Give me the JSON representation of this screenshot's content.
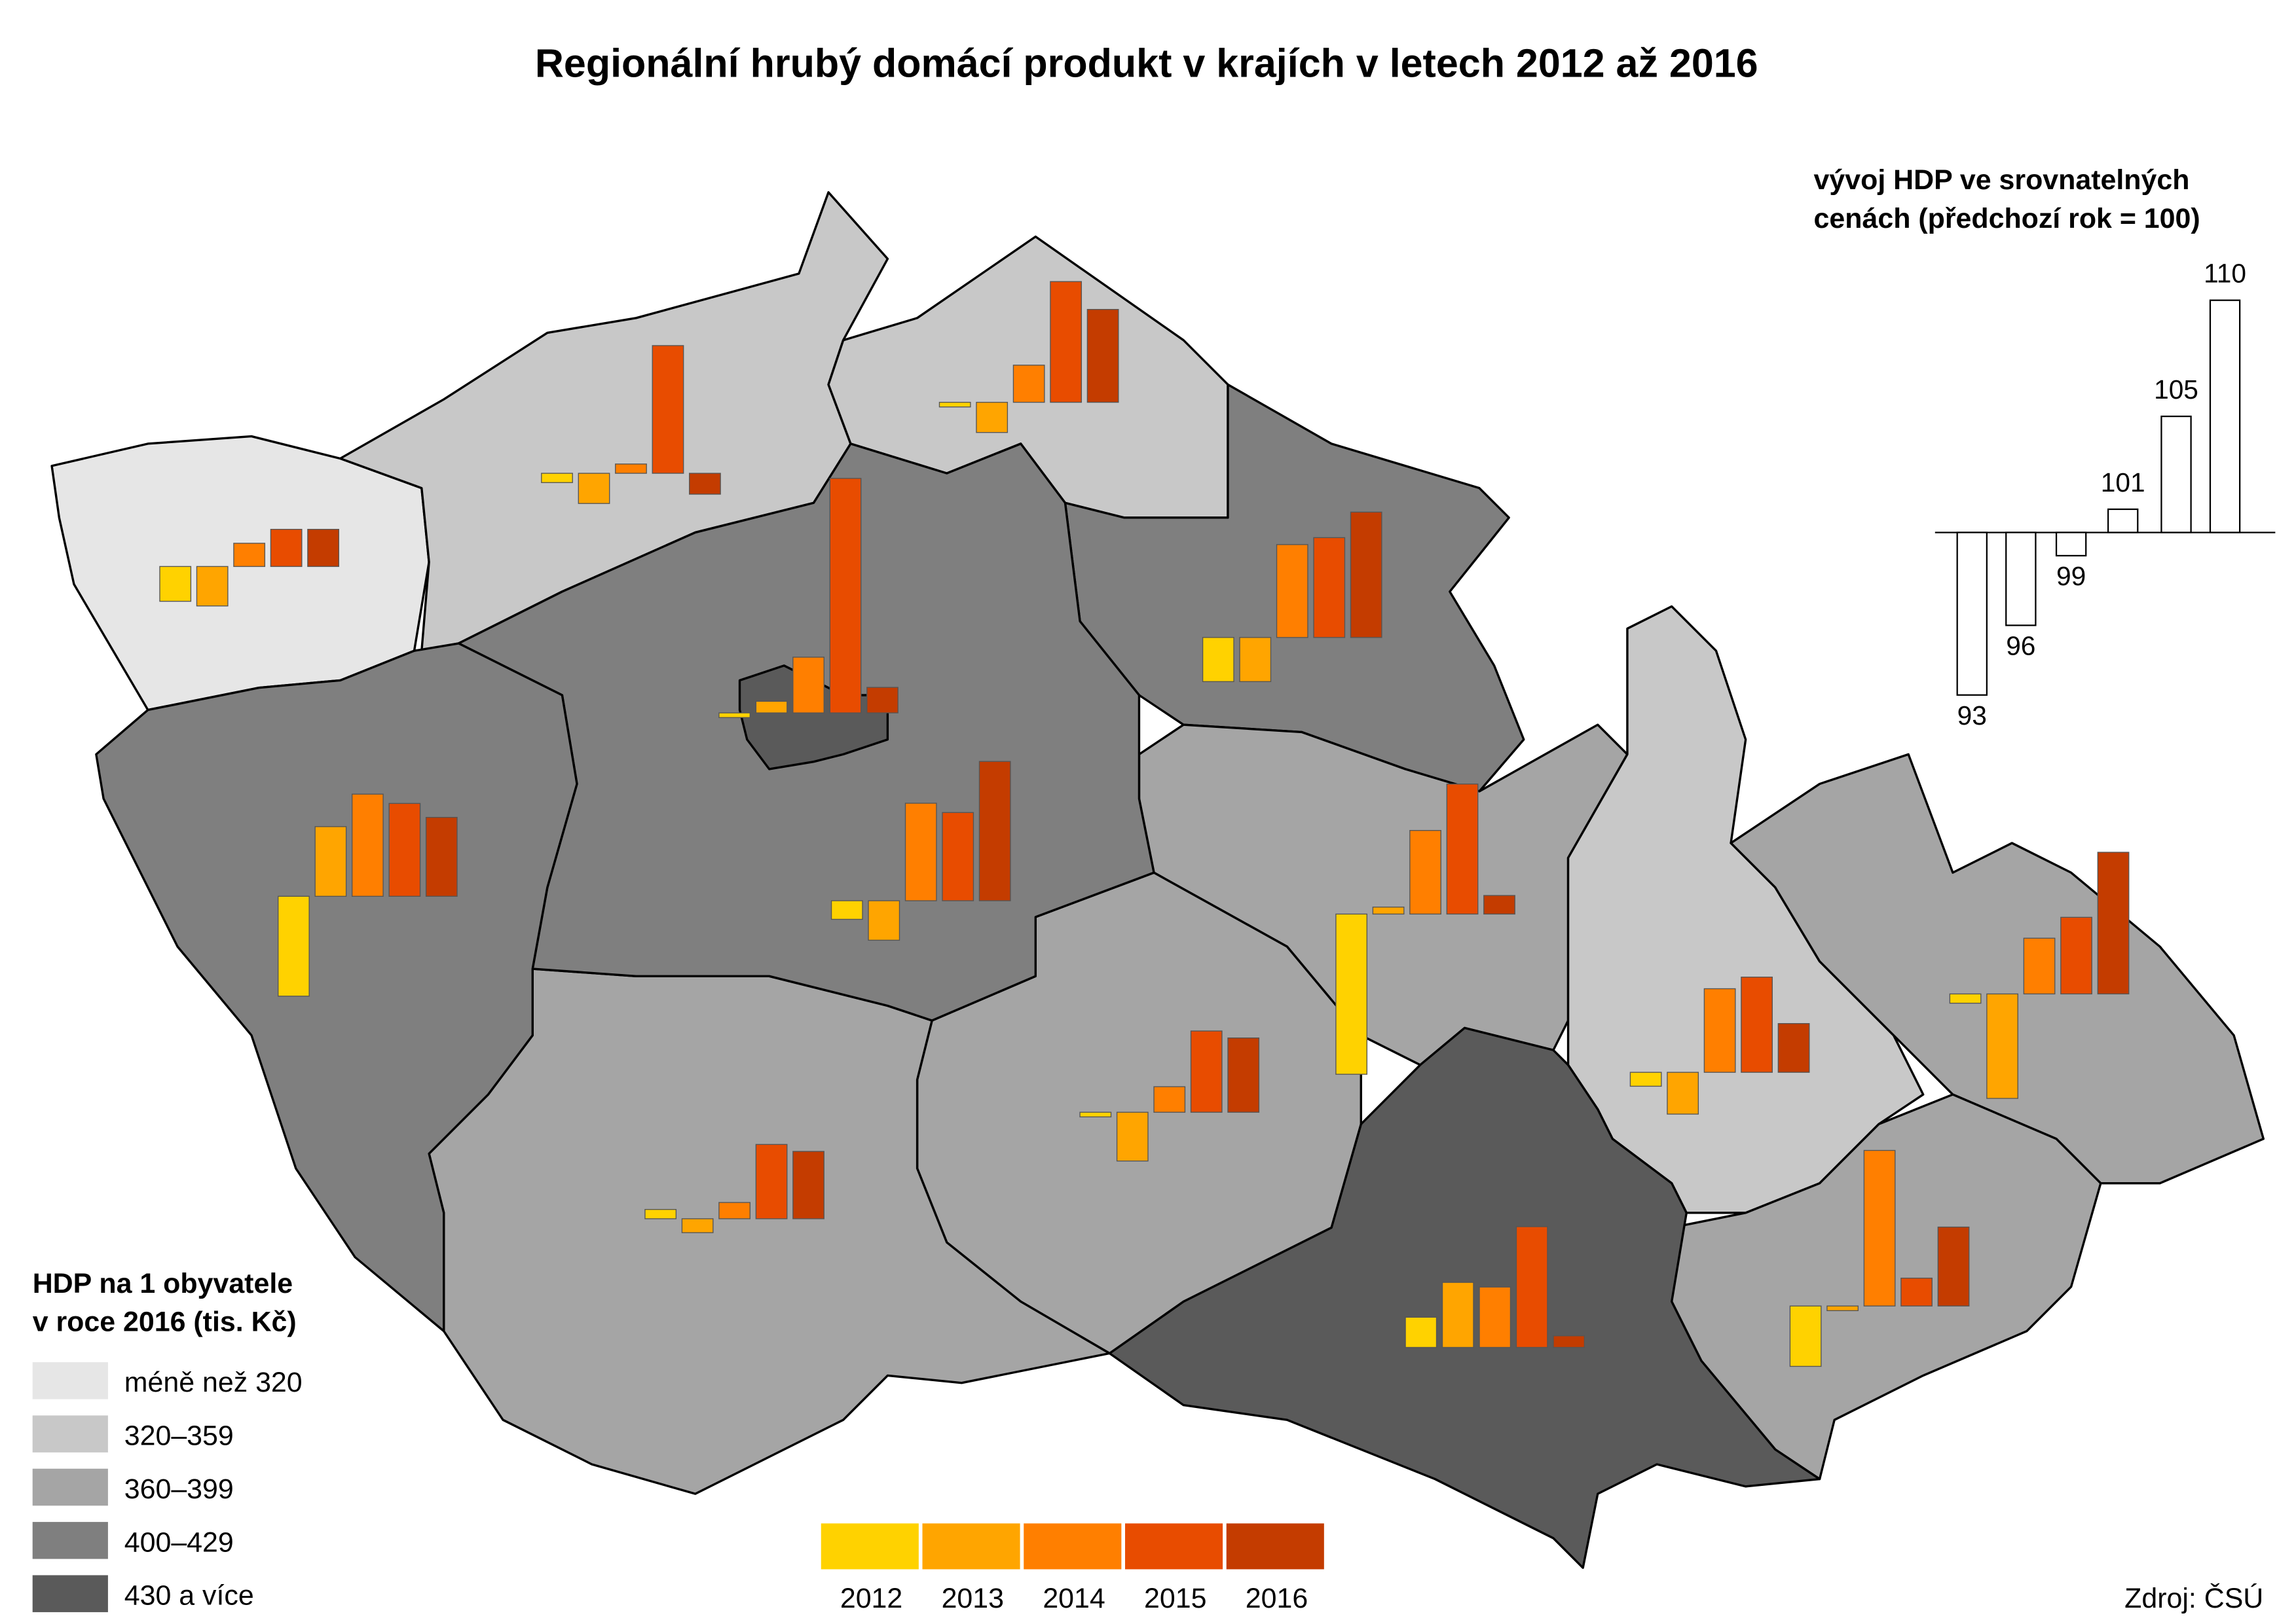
{
  "title": "Regionální hrubý domácí produkt v krajích v letech 2012 až 2016",
  "key": {
    "title_lines": [
      "vývoj HDP ve srovnatelných",
      "cenách (předchozí rok = 100)"
    ],
    "base": 100,
    "values": [
      93,
      96,
      99,
      101,
      105,
      110
    ]
  },
  "regions": [
    {
      "color": "#e6e6e6",
      "values": [
        98.5,
        98.3,
        101,
        101.6,
        101.6
      ]
    },
    {
      "color": "#c8c8c8",
      "values": [
        99.6,
        98.7,
        100.4,
        105.5,
        99.1
      ]
    },
    {
      "color": "#c8c8c8",
      "values": [
        99.8,
        98.7,
        101.6,
        105.2,
        104
      ]
    },
    {
      "color": "#7f7f7f",
      "values": [
        98.1,
        98.1,
        104,
        104.3,
        105.4
      ]
    },
    {
      "color": "#a5a5a5",
      "values": [
        93.1,
        100.3,
        103.6,
        105.6,
        100.8
      ]
    },
    {
      "color": "#c8c8c8",
      "values": [
        99.4,
        98.2,
        103.6,
        104.1,
        102.1
      ]
    },
    {
      "color": "#a5a5a5",
      "values": [
        99.6,
        95.5,
        102.4,
        103.3,
        106.1
      ]
    },
    {
      "color": "#a5a5a5",
      "values": [
        97.4,
        99.8,
        106.7,
        101.2,
        103.4
      ]
    },
    {
      "color": "#5a5a5a",
      "values": [
        101.3,
        102.8,
        102.6,
        105.2,
        100.5
      ]
    },
    {
      "color": "#a5a5a5",
      "values": [
        99.8,
        97.9,
        101.1,
        103.5,
        103.2
      ]
    },
    {
      "color": "#a5a5a5",
      "values": [
        100.4,
        99.4,
        100.7,
        103.2,
        102.9
      ]
    },
    {
      "color": "#7f7f7f",
      "values": [
        99.2,
        98.3,
        104.2,
        103.8,
        106
      ]
    },
    {
      "color": "#7f7f7f",
      "values": [
        95.7,
        103,
        104.4,
        104,
        103.4
      ]
    },
    {
      "color": "#5a5a5a",
      "values": [
        99.8,
        100.5,
        102.4,
        110.1,
        101.1
      ]
    }
  ],
  "years": [
    "2012",
    "2013",
    "2014",
    "2015",
    "2016"
  ],
  "year_colors": [
    "#ffd200",
    "#ffa500",
    "#ff7f00",
    "#e84c00",
    "#c43c00"
  ],
  "legend": {
    "title_lines": [
      "HDP na 1 obyvatele",
      "v roce 2016 (tis. Kč)"
    ],
    "items": [
      {
        "label": "méně než 320",
        "color": "#e6e6e6"
      },
      {
        "label": "320–359",
        "color": "#c8c8c8"
      },
      {
        "label": "360–399",
        "color": "#a5a5a5"
      },
      {
        "label": "400–429",
        "color": "#7f7f7f"
      },
      {
        "label": "430 a více",
        "color": "#5a5a5a"
      }
    ]
  },
  "source": "Zdroj: ČSÚ"
}
